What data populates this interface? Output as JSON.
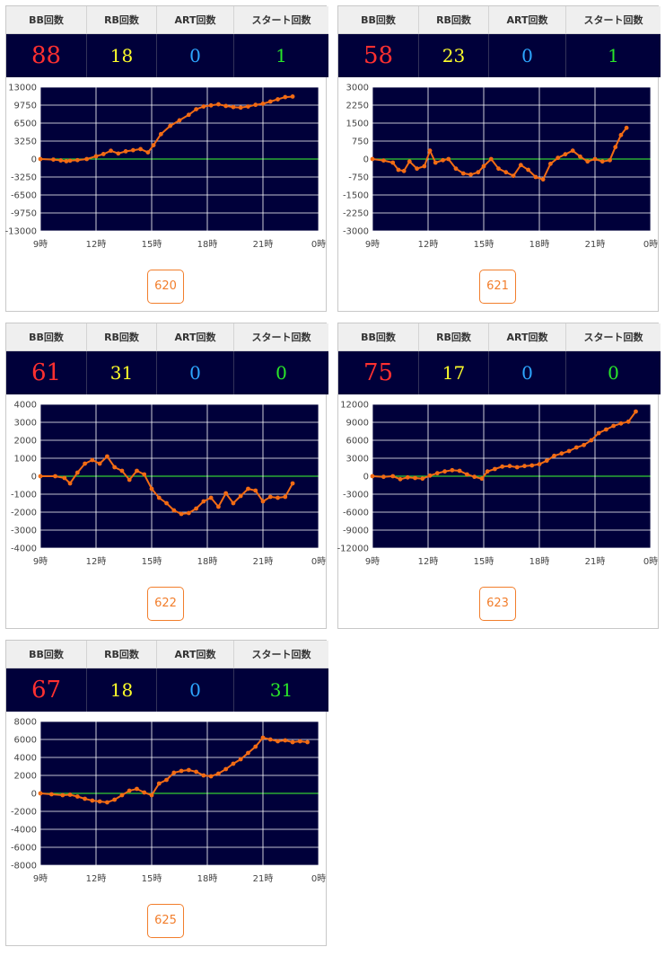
{
  "headers": {
    "bb": "BB回数",
    "rb": "RB回数",
    "art": "ART回数",
    "start": "スタート回数"
  },
  "colors": {
    "plot_bg": "#00003a",
    "line": "#f26b14",
    "zero_line": "#33cc33",
    "bb": "#ff3030",
    "rb": "#ffff2a",
    "art": "#2da6ff",
    "start": "#29e629",
    "button": "#f27e2c"
  },
  "machines": [
    {
      "number": "620",
      "bb": "88",
      "rb": "18",
      "art": "0",
      "start": "1"
    },
    {
      "number": "621",
      "bb": "58",
      "rb": "23",
      "art": "0",
      "start": "1"
    },
    {
      "number": "622",
      "bb": "61",
      "rb": "31",
      "art": "0",
      "start": "0"
    },
    {
      "number": "623",
      "bb": "75",
      "rb": "17",
      "art": "0",
      "start": "0"
    },
    {
      "number": "625",
      "bb": "67",
      "rb": "18",
      "art": "0",
      "start": "31"
    }
  ],
  "chart_data": [
    {
      "type": "line",
      "ylim": [
        -13000,
        13000
      ],
      "yticks": [
        "13000",
        "9750",
        "6500",
        "3250",
        "0",
        "-3250",
        "-6500",
        "-9750",
        "-13000"
      ],
      "xticks": [
        "9時",
        "12時",
        "15時",
        "18時",
        "21時",
        "0時"
      ],
      "grid": true,
      "x": [
        9.0,
        9.7,
        10.1,
        10.4,
        10.6,
        11.0,
        11.5,
        12.0,
        12.4,
        12.8,
        13.2,
        13.6,
        14.0,
        14.4,
        14.8,
        15.1,
        15.5,
        16.0,
        16.5,
        17.0,
        17.4,
        17.8,
        18.2,
        18.6,
        19.0,
        19.4,
        19.8,
        20.2,
        20.6,
        21.0,
        21.4,
        21.8,
        22.2,
        22.6
      ],
      "values": [
        0,
        -100,
        -250,
        -400,
        -300,
        -200,
        0,
        500,
        900,
        1500,
        1000,
        1400,
        1600,
        1800,
        1200,
        2500,
        4500,
        6000,
        7000,
        8000,
        9000,
        9500,
        9700,
        9900,
        9600,
        9400,
        9300,
        9500,
        9800,
        10000,
        10400,
        10800,
        11200,
        11300
      ]
    },
    {
      "type": "line",
      "ylim": [
        -3000,
        3000
      ],
      "yticks": [
        "3000",
        "2250",
        "1500",
        "750",
        "0",
        "-750",
        "-1500",
        "-2250",
        "-3000"
      ],
      "xticks": [
        "9時",
        "12時",
        "15時",
        "18時",
        "21時",
        "0時"
      ],
      "grid": true,
      "x": [
        9.0,
        9.6,
        10.1,
        10.4,
        10.7,
        11.0,
        11.4,
        11.8,
        12.1,
        12.4,
        12.8,
        13.1,
        13.5,
        13.9,
        14.3,
        14.7,
        15.0,
        15.4,
        15.8,
        16.2,
        16.6,
        17.0,
        17.4,
        17.8,
        18.2,
        18.6,
        19.0,
        19.4,
        19.8,
        20.2,
        20.6,
        21.0,
        21.4,
        21.8,
        22.1,
        22.4,
        22.7
      ],
      "values": [
        0,
        -60,
        -150,
        -450,
        -500,
        -100,
        -400,
        -300,
        350,
        -150,
        -50,
        0,
        -400,
        -600,
        -650,
        -550,
        -300,
        0,
        -400,
        -550,
        -700,
        -250,
        -450,
        -750,
        -850,
        -200,
        50,
        200,
        350,
        100,
        -100,
        0,
        -100,
        -50,
        500,
        1000,
        1300
      ]
    },
    {
      "type": "line",
      "ylim": [
        -4000,
        4000
      ],
      "yticks": [
        "4000",
        "3000",
        "2000",
        "1000",
        "0",
        "-1000",
        "-2000",
        "-3000",
        "-4000"
      ],
      "xticks": [
        "9時",
        "12時",
        "15時",
        "18時",
        "21時",
        "0時"
      ],
      "grid": true,
      "x": [
        9.0,
        9.8,
        10.3,
        10.6,
        11.0,
        11.4,
        11.8,
        12.2,
        12.6,
        13.0,
        13.4,
        13.8,
        14.2,
        14.6,
        15.0,
        15.4,
        15.8,
        16.2,
        16.6,
        17.0,
        17.4,
        17.8,
        18.2,
        18.6,
        19.0,
        19.4,
        19.8,
        20.2,
        20.6,
        21.0,
        21.4,
        21.8,
        22.2,
        22.6
      ],
      "values": [
        0,
        0,
        -100,
        -400,
        200,
        700,
        900,
        700,
        1100,
        500,
        300,
        -200,
        300,
        100,
        -700,
        -1200,
        -1500,
        -1900,
        -2100,
        -2050,
        -1800,
        -1400,
        -1200,
        -1700,
        -950,
        -1500,
        -1100,
        -700,
        -800,
        -1400,
        -1150,
        -1200,
        -1150,
        -400
      ]
    },
    {
      "type": "line",
      "ylim": [
        -12000,
        12000
      ],
      "yticks": [
        "12000",
        "9000",
        "6000",
        "3000",
        "0",
        "-3000",
        "-6000",
        "-9000",
        "-12000"
      ],
      "xticks": [
        "9時",
        "12時",
        "15時",
        "18時",
        "21時",
        "0時"
      ],
      "grid": true,
      "x": [
        9.0,
        9.6,
        10.1,
        10.5,
        10.9,
        11.3,
        11.7,
        12.1,
        12.5,
        12.9,
        13.3,
        13.7,
        14.1,
        14.5,
        14.9,
        15.2,
        15.6,
        16.0,
        16.4,
        16.8,
        17.2,
        17.6,
        18.0,
        18.4,
        18.8,
        19.2,
        19.6,
        20.0,
        20.4,
        20.8,
        21.2,
        21.6,
        22.0,
        22.4,
        22.8,
        23.2
      ],
      "values": [
        0,
        -100,
        0,
        -500,
        -200,
        -300,
        -400,
        100,
        500,
        800,
        1000,
        900,
        300,
        -100,
        -400,
        800,
        1200,
        1600,
        1700,
        1500,
        1700,
        1800,
        2000,
        2600,
        3400,
        3800,
        4200,
        4800,
        5200,
        6000,
        7200,
        7800,
        8400,
        8800,
        9100,
        10800
      ]
    },
    {
      "type": "line",
      "ylim": [
        -8000,
        8000
      ],
      "yticks": [
        "8000",
        "6000",
        "4000",
        "2000",
        "0",
        "-2000",
        "-4000",
        "-6000",
        "-8000"
      ],
      "xticks": [
        "9時",
        "12時",
        "15時",
        "18時",
        "21時",
        "0時"
      ],
      "grid": true,
      "x": [
        9.0,
        9.6,
        10.2,
        10.6,
        11.0,
        11.4,
        11.8,
        12.2,
        12.6,
        13.0,
        13.4,
        13.8,
        14.2,
        14.6,
        15.0,
        15.4,
        15.8,
        16.2,
        16.6,
        17.0,
        17.4,
        17.8,
        18.2,
        18.6,
        19.0,
        19.4,
        19.8,
        20.2,
        20.6,
        21.0,
        21.4,
        21.8,
        22.2,
        22.6,
        23.0,
        23.4
      ],
      "values": [
        0,
        -100,
        -200,
        -150,
        -350,
        -600,
        -800,
        -900,
        -1000,
        -700,
        -200,
        300,
        500,
        100,
        -200,
        1100,
        1500,
        2300,
        2500,
        2600,
        2400,
        2000,
        1900,
        2200,
        2700,
        3300,
        3800,
        4500,
        5200,
        6200,
        6000,
        5800,
        5900,
        5700,
        5800,
        5700
      ]
    }
  ]
}
